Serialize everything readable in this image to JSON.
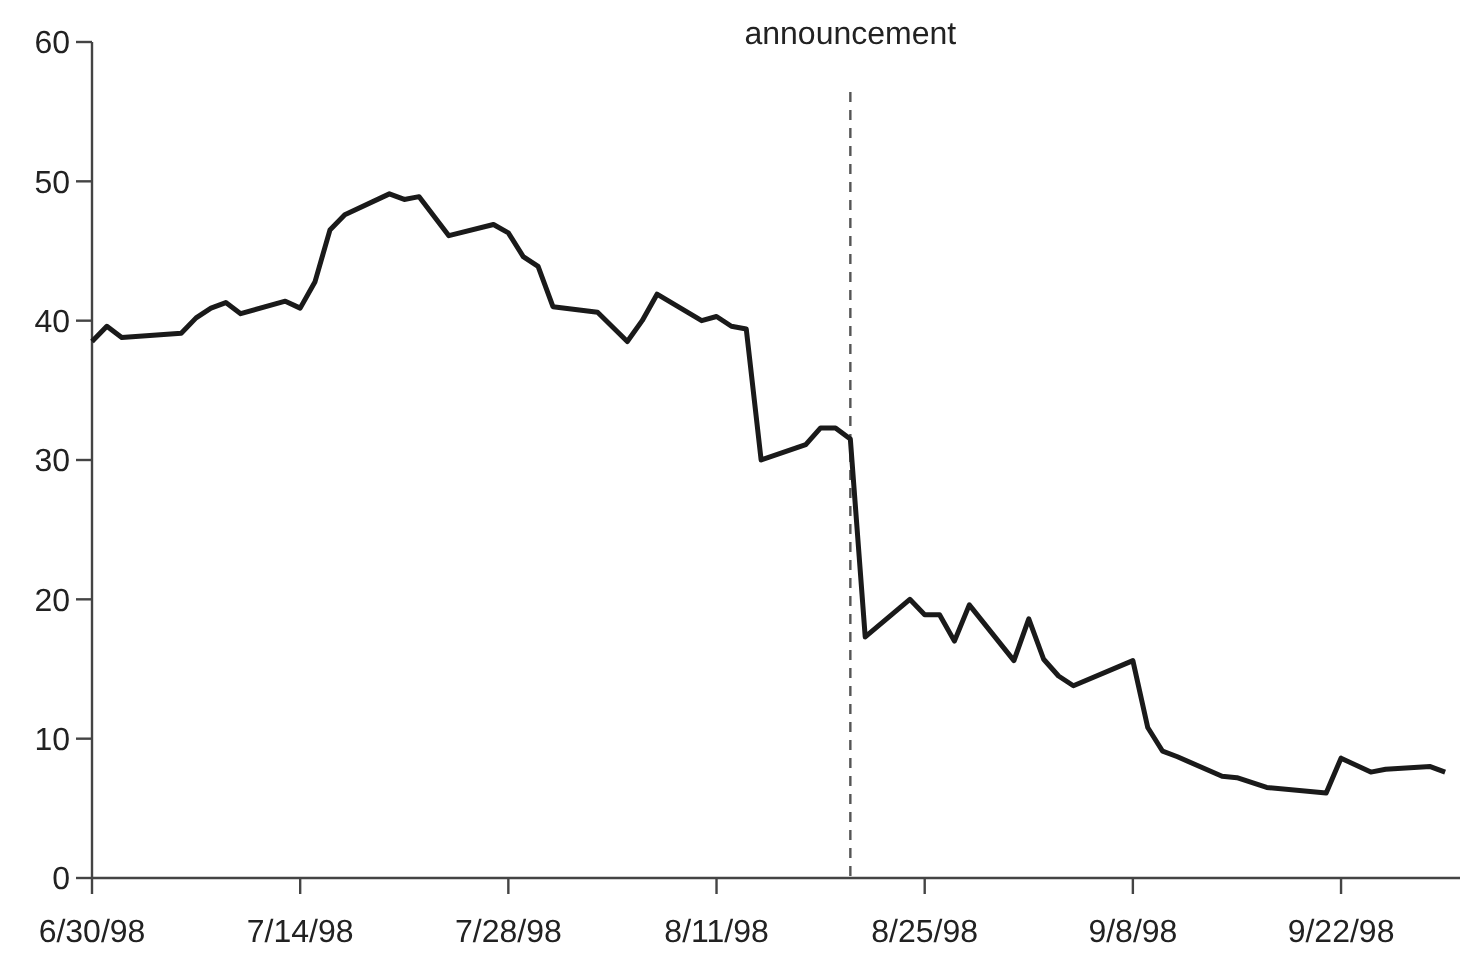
{
  "chart_data": {
    "type": "line",
    "x": [
      "1998-06-30",
      "1998-07-01",
      "1998-07-02",
      "1998-07-06",
      "1998-07-07",
      "1998-07-08",
      "1998-07-09",
      "1998-07-10",
      "1998-07-13",
      "1998-07-14",
      "1998-07-15",
      "1998-07-16",
      "1998-07-17",
      "1998-07-20",
      "1998-07-21",
      "1998-07-22",
      "1998-07-24",
      "1998-07-27",
      "1998-07-28",
      "1998-07-29",
      "1998-07-30",
      "1998-07-31",
      "1998-08-03",
      "1998-08-05",
      "1998-08-06",
      "1998-08-07",
      "1998-08-10",
      "1998-08-11",
      "1998-08-12",
      "1998-08-13",
      "1998-08-14",
      "1998-08-17",
      "1998-08-18",
      "1998-08-19",
      "1998-08-20",
      "1998-08-21",
      "1998-08-24",
      "1998-08-25",
      "1998-08-26",
      "1998-08-27",
      "1998-08-28",
      "1998-08-31",
      "1998-09-01",
      "1998-09-02",
      "1998-09-03",
      "1998-09-04",
      "1998-09-08",
      "1998-09-09",
      "1998-09-10",
      "1998-09-11",
      "1998-09-14",
      "1998-09-15",
      "1998-09-17",
      "1998-09-21",
      "1998-09-22",
      "1998-09-24",
      "1998-09-25",
      "1998-09-28",
      "1998-09-29"
    ],
    "series": [
      {
        "color": "#1a1a1a",
        "values": [
          38.5,
          39.6,
          38.8,
          39.1,
          40.2,
          40.9,
          41.3,
          40.5,
          41.4,
          40.9,
          42.8,
          46.5,
          47.6,
          49.1,
          48.7,
          48.9,
          46.1,
          46.9,
          46.3,
          44.6,
          43.9,
          41.0,
          40.6,
          38.5,
          40.0,
          41.9,
          40.0,
          40.3,
          39.6,
          39.4,
          30.0,
          31.1,
          32.3,
          32.3,
          31.5,
          17.3,
          20.0,
          18.9,
          18.9,
          17.0,
          19.6,
          15.6,
          18.6,
          15.7,
          14.5,
          13.8,
          15.6,
          10.8,
          9.1,
          8.7,
          7.3,
          7.2,
          6.5,
          6.1,
          8.6,
          7.6,
          7.8,
          8.0,
          7.6
        ]
      }
    ],
    "xlim": [
      "1998-06-30",
      "1998-09-30"
    ],
    "xticks": [
      {
        "value": "1998-06-30",
        "label": "6/30/98"
      },
      {
        "value": "1998-07-14",
        "label": "7/14/98"
      },
      {
        "value": "1998-07-28",
        "label": "7/28/98"
      },
      {
        "value": "1998-08-11",
        "label": "8/11/98"
      },
      {
        "value": "1998-08-25",
        "label": "8/25/98"
      },
      {
        "value": "1998-09-08",
        "label": "9/8/98"
      },
      {
        "value": "1998-09-22",
        "label": "9/22/98"
      }
    ],
    "ylim": [
      0,
      60
    ],
    "yticks": [
      0,
      10,
      20,
      30,
      40,
      50,
      60
    ],
    "grid": false,
    "marker": "none",
    "line_style": "solid",
    "ref_lines": [
      {
        "axis": "x",
        "value": "1998-08-20",
        "label": "announcement",
        "line_style": "dashed",
        "color": "#555555"
      }
    ]
  }
}
